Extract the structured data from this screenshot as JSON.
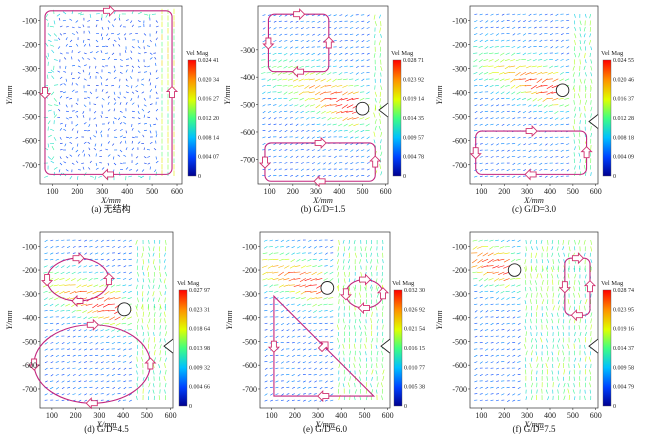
{
  "chart_data": [
    {
      "type": "vector-field",
      "caption": "(a) 无结构",
      "xlabel": "X/mm",
      "ylabel": "Y/mm",
      "xticks": [
        "100",
        "200",
        "300",
        "400",
        "500",
        "600"
      ],
      "yticks": [
        "-100",
        "-200",
        "-300",
        "-400",
        "-500",
        "-600",
        "-700"
      ],
      "xlim": [
        50,
        620
      ],
      "ylim": [
        -780,
        -40
      ],
      "colorbar": {
        "title": "Vel Mag",
        "max": 0.02441,
        "ticks": [
          "0.024 41",
          "0.020 34",
          "0.016 27",
          "0.012 20",
          "0.008 14",
          "0.004 07",
          "0"
        ]
      },
      "obstacle": null,
      "flat_plate": false,
      "loops": [
        {
          "kind": "rect",
          "x0": 70,
          "x1": 580,
          "y0": -60,
          "y1": -740
        }
      ]
    },
    {
      "type": "vector-field",
      "caption": "(b) G/D=1.5",
      "xlabel": "X/mm",
      "ylabel": "Y/mm",
      "xticks": [
        "100",
        "200",
        "300",
        "400",
        "500",
        "600"
      ],
      "yticks": [
        "-300",
        "-400",
        "-500",
        "-600",
        "-700"
      ],
      "xlim": [
        50,
        610
      ],
      "ylim": [
        -790,
        -140
      ],
      "colorbar": {
        "title": "Vel Mag",
        "max": 0.02871,
        "ticks": [
          "0.028 71",
          "0.023 92",
          "0.019 14",
          "0.014 35",
          "0.009 57",
          "0.004 78",
          "0"
        ]
      },
      "obstacle": {
        "x": 500,
        "y": -515,
        "d": 55
      },
      "flat_plate": true,
      "loops": [
        {
          "kind": "rect",
          "x0": 95,
          "x1": 355,
          "y0": -170,
          "y1": -380
        },
        {
          "kind": "rect",
          "x0": 80,
          "x1": 555,
          "y0": -640,
          "y1": -780
        }
      ]
    },
    {
      "type": "vector-field",
      "caption": "(c) G/D=3.0",
      "xlabel": "X/mm",
      "ylabel": "Y/mm",
      "xticks": [
        "100",
        "200",
        "300",
        "400",
        "500",
        "600"
      ],
      "yticks": [
        "-100",
        "-200",
        "-300",
        "-400",
        "-500",
        "-600",
        "-700"
      ],
      "xlim": [
        50,
        610
      ],
      "ylim": [
        -780,
        -40
      ],
      "colorbar": {
        "title": "Vel Mag",
        "max": 0.02455,
        "ticks": [
          "0.024 55",
          "0.020 46",
          "0.016 37",
          "0.012 28",
          "0.008 18",
          "0.004 09",
          "0"
        ]
      },
      "obstacle": {
        "x": 455,
        "y": -390,
        "d": 55
      },
      "flat_plate": true,
      "loops": [
        {
          "kind": "rect",
          "x0": 75,
          "x1": 560,
          "y0": -560,
          "y1": -740
        }
      ]
    },
    {
      "type": "vector-field",
      "caption": "(d) G/D=4.5",
      "xlabel": "X/mm",
      "ylabel": "Y/mm",
      "xticks": [
        "100",
        "200",
        "300",
        "400",
        "500",
        "600"
      ],
      "yticks": [
        "-100",
        "-200",
        "-300",
        "-400",
        "-500",
        "-600",
        "-700"
      ],
      "xlim": [
        50,
        610
      ],
      "ylim": [
        -780,
        -40
      ],
      "colorbar": {
        "title": "Vel Mag",
        "max": 0.02797,
        "ticks": [
          "0.027 97",
          "0.023 31",
          "0.018 64",
          "0.013 98",
          "0.009 32",
          "0.004 66",
          "0"
        ]
      },
      "obstacle": {
        "x": 405,
        "y": -365,
        "d": 55
      },
      "flat_plate": true,
      "loops": [
        {
          "kind": "ellipse",
          "cx": 210,
          "cy": -240,
          "rx": 130,
          "ry": 90
        },
        {
          "kind": "ellipse",
          "cx": 270,
          "cy": -595,
          "rx": 245,
          "ry": 165
        }
      ]
    },
    {
      "type": "vector-field",
      "caption": "(e) G/D=6.0",
      "xlabel": "X/mm",
      "ylabel": "Y/mm",
      "xticks": [
        "100",
        "200",
        "300",
        "400",
        "500",
        "600"
      ],
      "yticks": [
        "-100",
        "-200",
        "-300",
        "-400",
        "-500",
        "-600",
        "-700"
      ],
      "xlim": [
        50,
        610
      ],
      "ylim": [
        -780,
        -40
      ],
      "colorbar": {
        "title": "Vel Mag",
        "max": 0.0323,
        "ticks": [
          "0.032 30",
          "0.026 92",
          "0.021 54",
          "0.016 15",
          "0.010 77",
          "0.005 38",
          "0"
        ]
      },
      "obstacle": {
        "x": 340,
        "y": -275,
        "d": 55
      },
      "flat_plate": true,
      "loops": [
        {
          "kind": "triangle",
          "pts": [
            [
              110,
              -310
            ],
            [
              110,
              -730
            ],
            [
              540,
              -730
            ]
          ]
        },
        {
          "kind": "ellipse",
          "cx": 500,
          "cy": -300,
          "rx": 80,
          "ry": 60
        }
      ]
    },
    {
      "type": "vector-field",
      "caption": "(f) G/D=7.5",
      "xlabel": "X/mm",
      "ylabel": "Y/mm",
      "xticks": [
        "100",
        "200",
        "300",
        "400",
        "500",
        "600"
      ],
      "yticks": [
        "-100",
        "-200",
        "-300",
        "-400",
        "-500",
        "-600",
        "-700"
      ],
      "xlim": [
        50,
        610
      ],
      "ylim": [
        -780,
        -40
      ],
      "colorbar": {
        "title": "Vel Mag",
        "max": 0.02874,
        "ticks": [
          "0.028 74",
          "0.023 95",
          "0.019 16",
          "0.014 37",
          "0.009 58",
          "0.004 79",
          "0"
        ]
      },
      "obstacle": {
        "x": 245,
        "y": -200,
        "d": 55
      },
      "flat_plate": true,
      "loops": [
        {
          "kind": "rect",
          "x0": 465,
          "x1": 575,
          "y0": -150,
          "y1": -390
        }
      ]
    }
  ],
  "colors": {
    "loop": "#c2267f",
    "arrow_fill": "#ffffff",
    "arrow_stroke": "#d0306f",
    "colormap": [
      "#00008f",
      "#0040ff",
      "#00c0ff",
      "#40ff80",
      "#e0ff00",
      "#ff9000",
      "#ff0000"
    ]
  }
}
